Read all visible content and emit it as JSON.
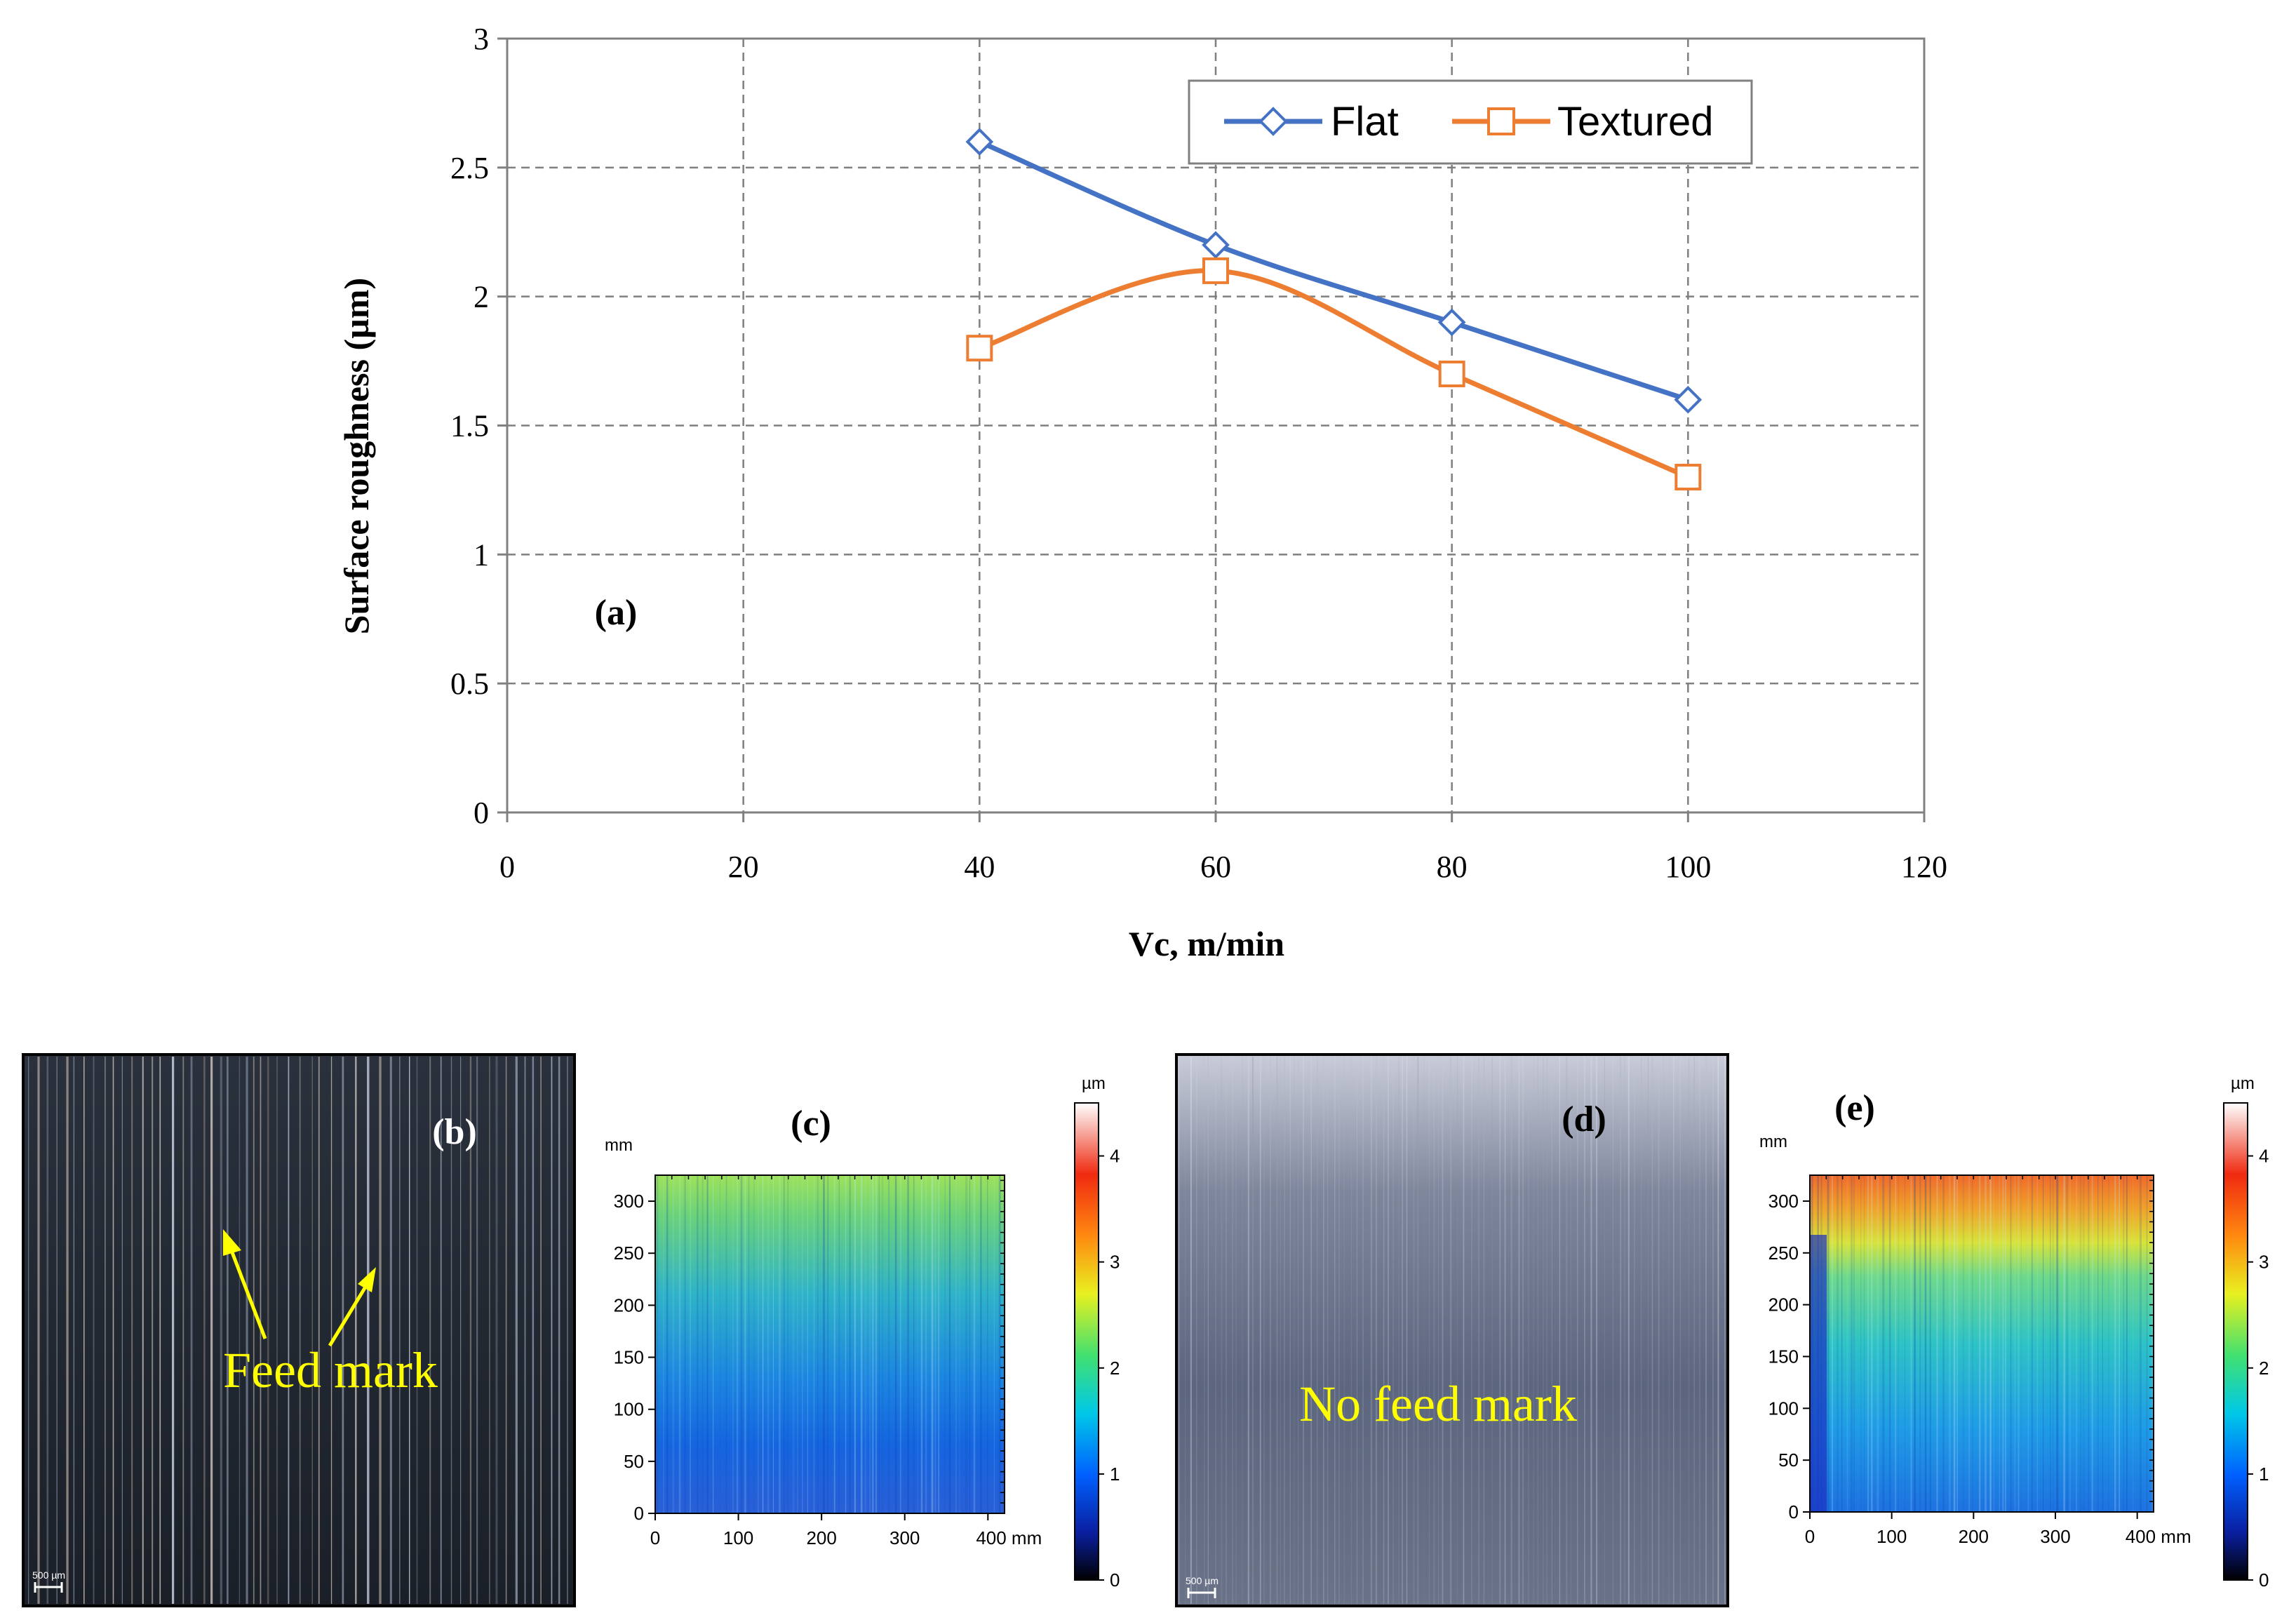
{
  "chart_data": [
    {
      "type": "line",
      "panel_label": "(a)",
      "title": "",
      "xlabel": "Vc, m/min",
      "ylabel": "Surface roughness (µm)",
      "xlim": [
        0,
        120
      ],
      "ylim": [
        0,
        3
      ],
      "xticks": [
        0,
        20,
        40,
        60,
        80,
        100,
        120
      ],
      "yticks": [
        0,
        0.5,
        1,
        1.5,
        2,
        2.5,
        3
      ],
      "xtick_labels": [
        "0",
        "20",
        "40",
        "60",
        "80",
        "100",
        "120"
      ],
      "ytick_labels": [
        "0",
        "0.5",
        "1",
        "1.5",
        "2",
        "2.5",
        "3"
      ],
      "grid": true,
      "legend_position": "top-right",
      "series": [
        {
          "name": "Flat",
          "x": [
            40,
            60,
            80,
            100
          ],
          "values": [
            2.6,
            2.2,
            1.9,
            1.6
          ],
          "color": "#4472c4",
          "marker": "diamond"
        },
        {
          "name": "Textured",
          "x": [
            40,
            60,
            80,
            100
          ],
          "values": [
            1.8,
            2.1,
            1.7,
            1.3
          ],
          "color": "#ed7d31",
          "marker": "square"
        }
      ]
    },
    {
      "type": "heatmap",
      "panel_label": "(c)",
      "x_unit": "mm",
      "y_unit": "mm",
      "xlim": [
        0,
        420
      ],
      "ylim": [
        0,
        325
      ],
      "xtick_labels": [
        "0",
        "100",
        "200",
        "300",
        "400 mm"
      ],
      "ytick_labels": [
        "0",
        "50",
        "100",
        "150",
        "200",
        "250",
        "300"
      ],
      "colorbar": {
        "unit": "µm",
        "range": [
          0,
          4.5
        ],
        "tick_labels": [
          "0",
          "1",
          "2",
          "3",
          "4"
        ]
      }
    },
    {
      "type": "heatmap",
      "panel_label": "(e)",
      "x_unit": "mm",
      "y_unit": "mm",
      "xlim": [
        0,
        420
      ],
      "ylim": [
        0,
        325
      ],
      "xtick_labels": [
        "0",
        "100",
        "200",
        "300",
        "400 mm"
      ],
      "ytick_labels": [
        "0",
        "50",
        "100",
        "150",
        "200",
        "250",
        "300"
      ],
      "colorbar": {
        "unit": "µm",
        "range": [
          0,
          4.5
        ],
        "tick_labels": [
          "0",
          "1",
          "2",
          "3",
          "4"
        ]
      }
    }
  ],
  "micrographs": [
    {
      "panel_label": "(b)",
      "annotation": "Feed mark",
      "scale_label": "500 µm",
      "colors": {
        "base": "#1f2530",
        "annotation": "#ffff00"
      }
    },
    {
      "panel_label": "(d)",
      "annotation": "No feed mark",
      "scale_label": "500 µm",
      "colors": {
        "base": "#6e7890",
        "annotation": "#ffff00"
      }
    }
  ]
}
